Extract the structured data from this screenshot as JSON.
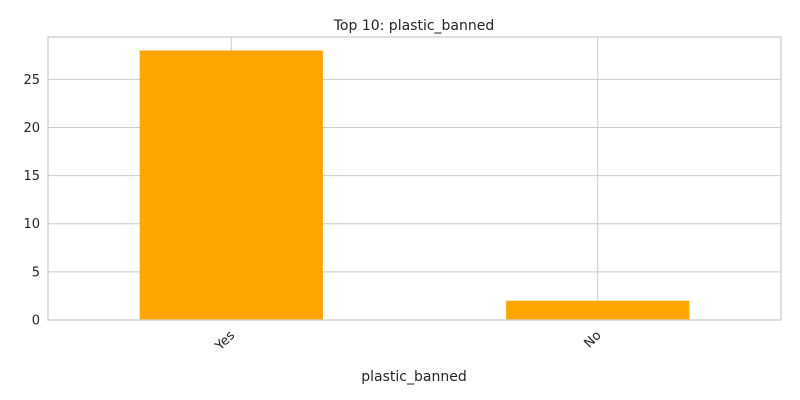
{
  "chart_data": {
    "type": "bar",
    "title": "Top 10: plastic_banned",
    "xlabel": "plastic_banned",
    "ylabel": "",
    "categories": [
      "Yes",
      "No"
    ],
    "values": [
      28,
      2
    ],
    "ylim": [
      0,
      29.4
    ],
    "yticks": [
      0,
      5,
      10,
      15,
      20,
      25
    ],
    "grid": true,
    "legend": "none",
    "bar_color": "#FFA500",
    "xtick_rotation": -45
  }
}
